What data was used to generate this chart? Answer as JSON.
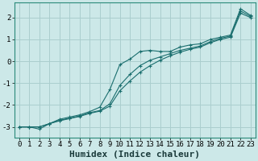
{
  "bg_color": "#cce8e8",
  "grid_color": "#aacece",
  "line_color": "#1a6e6e",
  "xlabel": "Humidex (Indice chaleur)",
  "xlim": [
    -0.5,
    23.5
  ],
  "ylim": [
    -3.5,
    2.7
  ],
  "yticks": [
    -3,
    -2,
    -1,
    0,
    1,
    2
  ],
  "xticks": [
    0,
    1,
    2,
    3,
    4,
    5,
    6,
    7,
    8,
    9,
    10,
    11,
    12,
    13,
    14,
    15,
    16,
    17,
    18,
    19,
    20,
    21,
    22,
    23
  ],
  "line1_x": [
    0,
    1,
    2,
    3,
    4,
    5,
    6,
    7,
    8,
    9,
    10,
    11,
    12,
    13,
    14,
    15,
    16,
    17,
    18,
    19,
    20,
    21,
    22,
    23
  ],
  "line1_y": [
    -3.0,
    -3.0,
    -3.1,
    -2.85,
    -2.65,
    -2.55,
    -2.45,
    -2.3,
    -2.1,
    -1.3,
    -0.15,
    0.1,
    0.45,
    0.5,
    0.45,
    0.45,
    0.65,
    0.75,
    0.8,
    1.0,
    1.1,
    1.2,
    2.4,
    2.1
  ],
  "line2_x": [
    0,
    1,
    2,
    3,
    4,
    5,
    6,
    7,
    8,
    9,
    10,
    11,
    12,
    13,
    14,
    15,
    16,
    17,
    18,
    19,
    20,
    21,
    22,
    23
  ],
  "line2_y": [
    -3.0,
    -3.0,
    -3.0,
    -2.85,
    -2.7,
    -2.6,
    -2.5,
    -2.35,
    -2.25,
    -1.95,
    -1.1,
    -0.6,
    -0.2,
    0.05,
    0.2,
    0.35,
    0.5,
    0.6,
    0.7,
    0.9,
    1.05,
    1.15,
    2.3,
    2.05
  ],
  "line3_x": [
    0,
    1,
    2,
    3,
    4,
    5,
    6,
    7,
    8,
    9,
    10,
    11,
    12,
    13,
    14,
    15,
    16,
    17,
    18,
    19,
    20,
    21,
    22,
    23
  ],
  "line3_y": [
    -3.0,
    -3.0,
    -3.0,
    -2.85,
    -2.72,
    -2.62,
    -2.52,
    -2.38,
    -2.28,
    -2.05,
    -1.35,
    -0.9,
    -0.5,
    -0.2,
    0.05,
    0.25,
    0.42,
    0.55,
    0.65,
    0.85,
    1.0,
    1.1,
    2.2,
    2.0
  ],
  "marker_size": 3.0,
  "line_width": 0.8,
  "xlabel_fontsize": 8,
  "tick_fontsize": 6.5
}
